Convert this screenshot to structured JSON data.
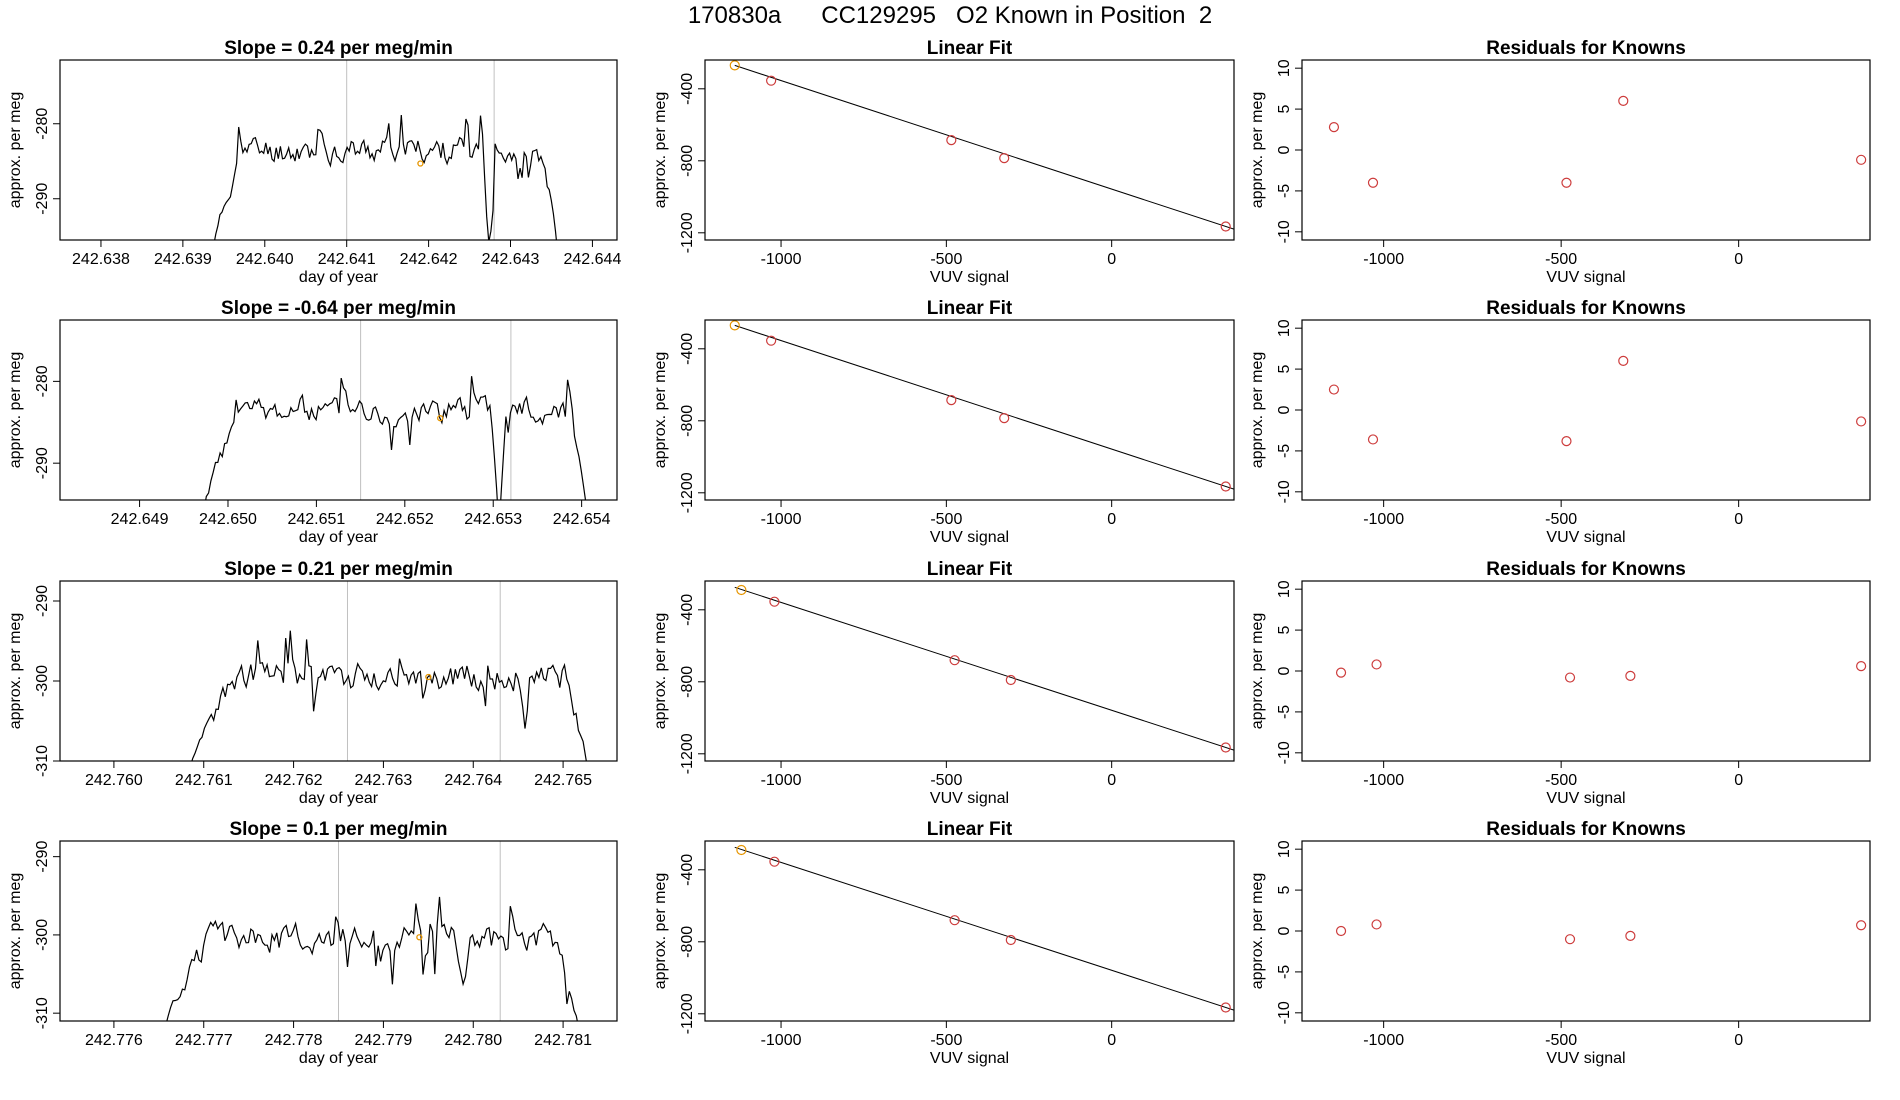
{
  "page": {
    "title": "170830a      CC129295   O2 Known in Position  2"
  },
  "colors": {
    "trace": "#000000",
    "points": "#cd3c3c",
    "highlight": "#e69500",
    "ref_line": "#c0c0c0",
    "fit_line": "#000000",
    "axes": "#000000"
  },
  "chart_data": [
    {
      "type": "line",
      "panel": "r1-drift",
      "title": "Slope =  0.24  per meg/min",
      "xlabel": "day of year",
      "ylabel": "approx. per meg",
      "xlim": [
        242.6375,
        242.6443
      ],
      "ylim": [
        -295.5,
        -271.5
      ],
      "x_ticks": [
        "242.638",
        "242.639",
        "242.640",
        "242.641",
        "242.642",
        "242.643",
        "242.644"
      ],
      "y_ticks": [
        "-280",
        "-290"
      ],
      "vlines": [
        242.641,
        242.6428
      ],
      "trace": {
        "t_start": 242.6393,
        "t_end": 242.6436,
        "n": 170,
        "seed": 11,
        "base": -283.5,
        "amp": 1.7,
        "rise": 0.1,
        "fall": 0.05,
        "low": -300,
        "dip_at": 0.8,
        "dip_depth": 14
      },
      "marker": {
        "x": 242.6419,
        "y": -285.3
      }
    },
    {
      "type": "scatter",
      "panel": "r1-fit",
      "title": "Linear Fit",
      "xlabel": "VUV signal",
      "ylabel": "approx. per meg",
      "xlim": [
        -1230,
        370
      ],
      "ylim": [
        -1240,
        -240
      ],
      "x_ticks": [
        "-1000",
        "-500",
        "0"
      ],
      "y_ticks": [
        "-400",
        "-800",
        "-1200"
      ],
      "points": [
        [
          -1140,
          -270
        ],
        [
          -1030,
          -355
        ],
        [
          -485,
          -685
        ],
        [
          -325,
          -785
        ],
        [
          345,
          -1165
        ]
      ],
      "highlight_index": 0,
      "fit_line": [
        [
          -1140,
          -270
        ],
        [
          370,
          -1180
        ]
      ]
    },
    {
      "type": "scatter",
      "panel": "r1-resid",
      "title": "Residuals for Knowns",
      "xlabel": "VUV signal",
      "ylabel": "approx. per meg",
      "xlim": [
        -1230,
        370
      ],
      "ylim": [
        -11,
        11
      ],
      "x_ticks": [
        "-1000",
        "-500",
        "0"
      ],
      "y_ticks": [
        "10",
        "5",
        "0",
        "-5",
        "-10"
      ],
      "points": [
        [
          -1140,
          2.8
        ],
        [
          -1030,
          -4
        ],
        [
          -485,
          -4
        ],
        [
          -325,
          6
        ],
        [
          345,
          -1.2
        ]
      ]
    },
    {
      "type": "line",
      "panel": "r2-drift",
      "title": "Slope =  -0.64  per meg/min",
      "xlabel": "day of year",
      "ylabel": "approx. per meg",
      "xlim": [
        242.6481,
        242.6544
      ],
      "ylim": [
        -294.5,
        -272.5
      ],
      "x_ticks": [
        "242.649",
        "242.650",
        "242.651",
        "242.652",
        "242.653",
        "242.654"
      ],
      "y_ticks": [
        "-280",
        "-290"
      ],
      "vlines": [
        242.6515,
        242.6532
      ],
      "trace": {
        "t_start": 242.6496,
        "t_end": 242.6541,
        "n": 175,
        "seed": 23,
        "base": -283.5,
        "amp": 1.5,
        "rise": 0.12,
        "fall": 0.05,
        "low": -300,
        "dip_at": 0.77,
        "dip_depth": 14
      },
      "marker": {
        "x": 242.6524,
        "y": -284.5
      }
    },
    {
      "type": "scatter",
      "panel": "r2-fit",
      "title": "Linear Fit",
      "xlabel": "VUV signal",
      "ylabel": "approx. per meg",
      "xlim": [
        -1230,
        370
      ],
      "ylim": [
        -1240,
        -240
      ],
      "x_ticks": [
        "-1000",
        "-500",
        "0"
      ],
      "y_ticks": [
        "-400",
        "-800",
        "-1200"
      ],
      "points": [
        [
          -1140,
          -270
        ],
        [
          -1030,
          -355
        ],
        [
          -485,
          -685
        ],
        [
          -325,
          -785
        ],
        [
          345,
          -1165
        ]
      ],
      "highlight_index": 0,
      "fit_line": [
        [
          -1140,
          -270
        ],
        [
          370,
          -1180
        ]
      ]
    },
    {
      "type": "scatter",
      "panel": "r2-resid",
      "title": "Residuals for Knowns",
      "xlabel": "VUV signal",
      "ylabel": "approx. per meg",
      "xlim": [
        -1230,
        370
      ],
      "ylim": [
        -11,
        11
      ],
      "x_ticks": [
        "-1000",
        "-500",
        "0"
      ],
      "y_ticks": [
        "10",
        "5",
        "0",
        "-5",
        "-10"
      ],
      "points": [
        [
          -1140,
          2.5
        ],
        [
          -1030,
          -3.6
        ],
        [
          -485,
          -3.8
        ],
        [
          -325,
          6
        ],
        [
          345,
          -1.4
        ]
      ]
    },
    {
      "type": "line",
      "panel": "r3-drift",
      "title": "Slope =  0.21  per meg/min",
      "xlabel": "day of year",
      "ylabel": "approx. per meg",
      "xlim": [
        242.7594,
        242.7656
      ],
      "ylim": [
        -310,
        -287.5
      ],
      "x_ticks": [
        "242.760",
        "242.761",
        "242.762",
        "242.763",
        "242.764",
        "242.765"
      ],
      "y_ticks": [
        "-290",
        "-300",
        "-310"
      ],
      "vlines": [
        242.7626,
        242.7643
      ],
      "trace": {
        "t_start": 242.7608,
        "t_end": 242.7653,
        "n": 175,
        "seed": 37,
        "base": -299.5,
        "amp": 1.7,
        "rise": 0.12,
        "fall": 0.06,
        "low": -313,
        "dip_at": 0.84,
        "dip_depth": 7
      },
      "marker": {
        "x": 242.7635,
        "y": -299.5
      }
    },
    {
      "type": "scatter",
      "panel": "r3-fit",
      "title": "Linear Fit",
      "xlabel": "VUV signal",
      "ylabel": "approx. per meg",
      "xlim": [
        -1230,
        370
      ],
      "ylim": [
        -1240,
        -240
      ],
      "x_ticks": [
        "-1000",
        "-500",
        "0"
      ],
      "y_ticks": [
        "-400",
        "-800",
        "-1200"
      ],
      "points": [
        [
          -1120,
          -290
        ],
        [
          -1020,
          -355
        ],
        [
          -475,
          -680
        ],
        [
          -305,
          -790
        ],
        [
          345,
          -1165
        ]
      ],
      "highlight_index": 0,
      "fit_line": [
        [
          -1140,
          -275
        ],
        [
          370,
          -1180
        ]
      ]
    },
    {
      "type": "scatter",
      "panel": "r3-resid",
      "title": "Residuals for Knowns",
      "xlabel": "VUV signal",
      "ylabel": "approx. per meg",
      "xlim": [
        -1230,
        370
      ],
      "ylim": [
        -11,
        11
      ],
      "x_ticks": [
        "-1000",
        "-500",
        "0"
      ],
      "y_ticks": [
        "10",
        "5",
        "0",
        "-5",
        "-10"
      ],
      "points": [
        [
          -1120,
          -0.2
        ],
        [
          -1020,
          0.8
        ],
        [
          -475,
          -0.8
        ],
        [
          -305,
          -0.6
        ],
        [
          345,
          0.6
        ]
      ]
    },
    {
      "type": "line",
      "panel": "r4-drift",
      "title": "Slope =  0.1  per meg/min",
      "xlabel": "day of year",
      "ylabel": "approx. per meg",
      "xlim": [
        242.7754,
        242.7816
      ],
      "ylim": [
        -311,
        -288
      ],
      "x_ticks": [
        "242.776",
        "242.777",
        "242.778",
        "242.779",
        "242.780",
        "242.781"
      ],
      "y_ticks": [
        "-290",
        "-300",
        "-310"
      ],
      "vlines": [
        242.7785,
        242.7803
      ],
      "trace": {
        "t_start": 242.7765,
        "t_end": 242.7812,
        "n": 180,
        "seed": 51,
        "base": -300.5,
        "amp": 1.7,
        "rise": 0.12,
        "fall": 0.06,
        "low": -314,
        "dip_at": 0.72,
        "dip_depth": 8
      },
      "marker": {
        "x": 242.7794,
        "y": -300.3
      }
    },
    {
      "type": "scatter",
      "panel": "r4-fit",
      "title": "Linear Fit",
      "xlabel": "VUV signal",
      "ylabel": "approx. per meg",
      "xlim": [
        -1230,
        370
      ],
      "ylim": [
        -1240,
        -240
      ],
      "x_ticks": [
        "-1000",
        "-500",
        "0"
      ],
      "y_ticks": [
        "-400",
        "-800",
        "-1200"
      ],
      "points": [
        [
          -1120,
          -290
        ],
        [
          -1020,
          -355
        ],
        [
          -475,
          -680
        ],
        [
          -305,
          -790
        ],
        [
          345,
          -1165
        ]
      ],
      "highlight_index": 0,
      "fit_line": [
        [
          -1140,
          -275
        ],
        [
          370,
          -1180
        ]
      ]
    },
    {
      "type": "scatter",
      "panel": "r4-resid",
      "title": "Residuals for Knowns",
      "xlabel": "VUV signal",
      "ylabel": "approx. per meg",
      "xlim": [
        -1230,
        370
      ],
      "ylim": [
        -11,
        11
      ],
      "x_ticks": [
        "-1000",
        "-500",
        "0"
      ],
      "y_ticks": [
        "10",
        "5",
        "0",
        "-5",
        "-10"
      ],
      "points": [
        [
          -1120,
          0
        ],
        [
          -1020,
          0.8
        ],
        [
          -475,
          -1
        ],
        [
          -305,
          -0.6
        ],
        [
          345,
          0.7
        ]
      ]
    }
  ]
}
